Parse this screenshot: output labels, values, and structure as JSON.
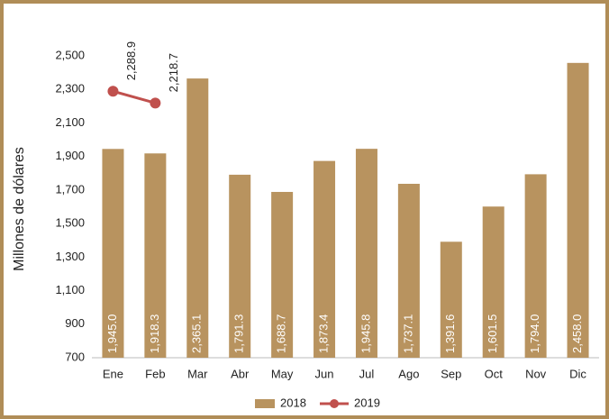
{
  "chart_data": {
    "type": "combo",
    "y_axis_label": "Millones de dólares",
    "categories": [
      "Ene",
      "Feb",
      "Mar",
      "Abr",
      "May",
      "Jun",
      "Jul",
      "Ago",
      "Sep",
      "Oct",
      "Nov",
      "Dic"
    ],
    "series": [
      {
        "name": "2018",
        "type": "bar",
        "color": "#b8935f",
        "values": [
          1945.0,
          1918.3,
          2365.1,
          1791.3,
          1688.7,
          1873.4,
          1945.8,
          1737.1,
          1391.6,
          1601.5,
          1794.0,
          2458.0
        ],
        "value_labels": [
          "1,945.0",
          "1,918.3",
          "2,365.1",
          "1,791.3",
          "1,688.7",
          "1,873.4",
          "1,945.8",
          "1,737.1",
          "1,391.6",
          "1,601.5",
          "1,794.0",
          "2,458.0"
        ]
      },
      {
        "name": "2019",
        "type": "line",
        "color": "#c0504d",
        "values": [
          2288.9,
          2218.7,
          null,
          null,
          null,
          null,
          null,
          null,
          null,
          null,
          null,
          null
        ],
        "value_labels": [
          "2,288.9",
          "2,218.7",
          null,
          null,
          null,
          null,
          null,
          null,
          null,
          null,
          null,
          null
        ]
      }
    ],
    "ylim": [
      700,
      2500
    ],
    "yticks": [
      700,
      900,
      {
        "value": 1100,
        "label": "1,100"
      },
      {
        "value": 1300,
        "label": "1,300"
      },
      {
        "value": 1500,
        "label": "1,500"
      },
      {
        "value": 1700,
        "label": "1,700"
      },
      {
        "value": 1900,
        "label": "1,900"
      },
      {
        "value": 2100,
        "label": "2,100"
      },
      {
        "value": 2300,
        "label": "2,300"
      },
      {
        "value": 2500,
        "label": "2,500"
      }
    ],
    "grid": false,
    "legend": "bottom"
  }
}
